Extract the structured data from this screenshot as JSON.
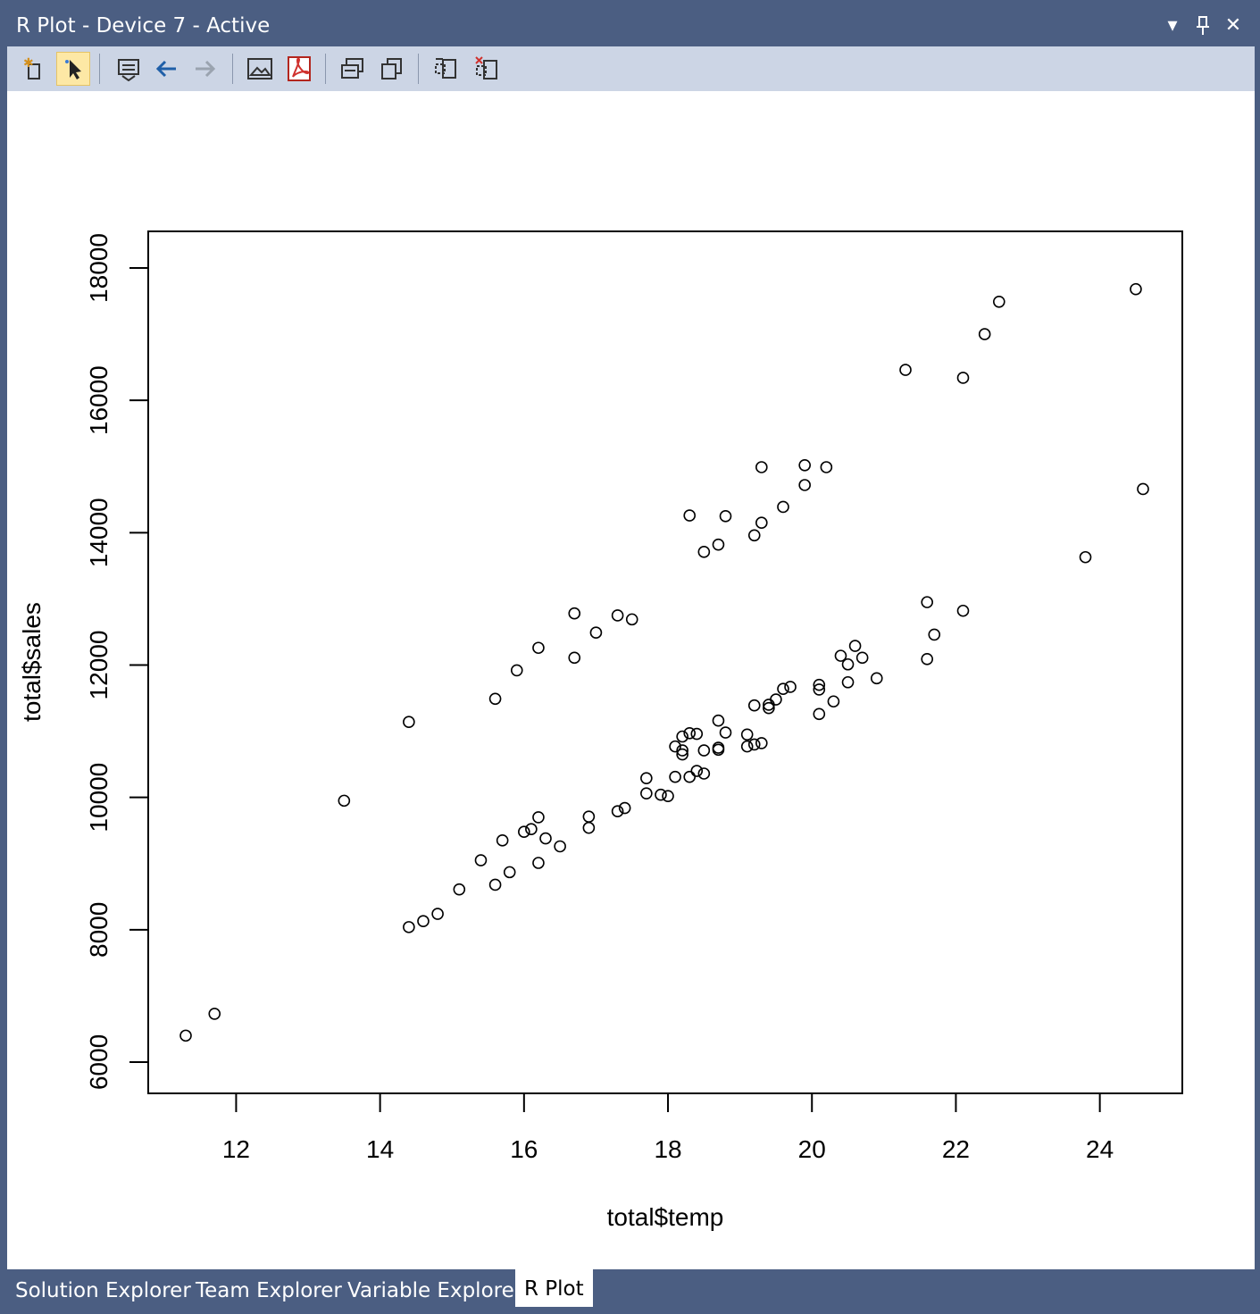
{
  "window": {
    "title": "R Plot - Device 7 - Active"
  },
  "toolbar": {
    "buttons": [
      "new-plot",
      "select-pointer",
      "history",
      "previous-plot",
      "next-plot",
      "export-image",
      "export-pdf",
      "copy-bitmap",
      "copy-metafile",
      "move-plot",
      "remove-plot"
    ]
  },
  "tabs": [
    {
      "label": "Solution Explorer",
      "active": false
    },
    {
      "label": "Team Explorer",
      "active": false
    },
    {
      "label": "Variable Explorer",
      "active": false
    },
    {
      "label": "R Plot",
      "active": true
    }
  ],
  "colors": {
    "chrome": "#4b5e82",
    "toolbar": "#ccd5e5",
    "plot_bg": "#ffffff",
    "ink": "#000000"
  },
  "chart_data": {
    "type": "scatter",
    "xlabel": "total$temp",
    "ylabel": "total$sales",
    "xlim": [
      11.3,
      24.6
    ],
    "ylim": [
      6000,
      18000
    ],
    "x_ticks": [
      12,
      14,
      16,
      18,
      20,
      22,
      24
    ],
    "y_ticks": [
      6000,
      8000,
      10000,
      12000,
      14000,
      16000,
      18000
    ],
    "grid": false,
    "marker": "open-circle",
    "points": [
      [
        11.3,
        6400
      ],
      [
        11.7,
        6730
      ],
      [
        13.5,
        9950
      ],
      [
        14.4,
        11140
      ],
      [
        14.4,
        8040
      ],
      [
        14.6,
        8130
      ],
      [
        14.8,
        8240
      ],
      [
        15.1,
        8610
      ],
      [
        15.4,
        9050
      ],
      [
        15.6,
        8680
      ],
      [
        15.6,
        11490
      ],
      [
        15.7,
        9350
      ],
      [
        15.8,
        8870
      ],
      [
        15.9,
        11920
      ],
      [
        16.0,
        9480
      ],
      [
        16.1,
        9520
      ],
      [
        16.2,
        9700
      ],
      [
        16.2,
        9010
      ],
      [
        16.2,
        12260
      ],
      [
        16.3,
        9380
      ],
      [
        16.5,
        9260
      ],
      [
        16.7,
        12110
      ],
      [
        16.7,
        12780
      ],
      [
        16.9,
        9540
      ],
      [
        16.9,
        9710
      ],
      [
        17.0,
        12490
      ],
      [
        17.3,
        9790
      ],
      [
        17.3,
        12750
      ],
      [
        17.4,
        9840
      ],
      [
        17.5,
        12690
      ],
      [
        17.7,
        10290
      ],
      [
        17.7,
        10060
      ],
      [
        17.9,
        10040
      ],
      [
        18.0,
        10020
      ],
      [
        18.1,
        10770
      ],
      [
        18.1,
        10310
      ],
      [
        18.2,
        10920
      ],
      [
        18.2,
        10710
      ],
      [
        18.2,
        10650
      ],
      [
        18.3,
        10970
      ],
      [
        18.3,
        10310
      ],
      [
        18.3,
        14260
      ],
      [
        18.4,
        10960
      ],
      [
        18.4,
        10400
      ],
      [
        18.5,
        10360
      ],
      [
        18.5,
        10710
      ],
      [
        18.5,
        13710
      ],
      [
        18.7,
        11160
      ],
      [
        18.7,
        10750
      ],
      [
        18.7,
        10720
      ],
      [
        18.7,
        13820
      ],
      [
        18.8,
        10980
      ],
      [
        18.8,
        14250
      ],
      [
        19.1,
        10950
      ],
      [
        19.1,
        10770
      ],
      [
        19.2,
        10800
      ],
      [
        19.2,
        11390
      ],
      [
        19.2,
        13960
      ],
      [
        19.3,
        10820
      ],
      [
        19.3,
        14150
      ],
      [
        19.3,
        14990
      ],
      [
        19.4,
        11350
      ],
      [
        19.4,
        11400
      ],
      [
        19.5,
        11480
      ],
      [
        19.6,
        11640
      ],
      [
        19.6,
        14390
      ],
      [
        19.7,
        11670
      ],
      [
        19.9,
        14720
      ],
      [
        19.9,
        15020
      ],
      [
        20.1,
        11700
      ],
      [
        20.1,
        11630
      ],
      [
        20.1,
        11260
      ],
      [
        20.2,
        14990
      ],
      [
        20.3,
        11450
      ],
      [
        20.4,
        12140
      ],
      [
        20.5,
        12010
      ],
      [
        20.5,
        11740
      ],
      [
        20.6,
        12290
      ],
      [
        20.7,
        12110
      ],
      [
        20.9,
        11800
      ],
      [
        21.3,
        16460
      ],
      [
        21.6,
        12950
      ],
      [
        21.6,
        12090
      ],
      [
        21.7,
        12460
      ],
      [
        22.1,
        12820
      ],
      [
        22.1,
        16340
      ],
      [
        22.4,
        17000
      ],
      [
        22.6,
        17490
      ],
      [
        23.8,
        13630
      ],
      [
        24.5,
        17680
      ],
      [
        24.6,
        14660
      ]
    ]
  }
}
